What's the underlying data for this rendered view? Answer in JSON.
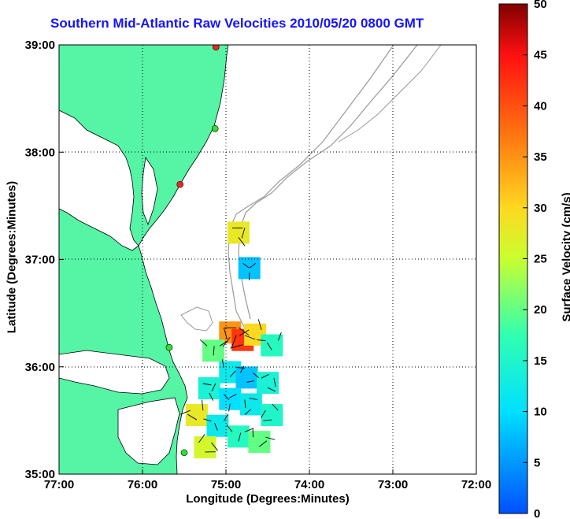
{
  "title": "Southern Mid-Atlantic Raw Velocities 2010/05/20 0800 GMT",
  "xlabel": "Longitude (Degrees:Minutes)",
  "ylabel": "Latitude (Degrees:Minutes)",
  "x_ticks": [
    "77:00",
    "76:00",
    "75:00",
    "74:00",
    "73:00",
    "72:00"
  ],
  "y_ticks": [
    "39:00",
    "38:00",
    "37:00",
    "36:00",
    "35:00"
  ],
  "colorbar": {
    "label": "Surface Velocity (cm/s)",
    "ticks": [
      "50",
      "45",
      "40",
      "35",
      "30",
      "25",
      "20",
      "15",
      "10",
      "5",
      "0"
    ],
    "min": 0,
    "max": 50
  },
  "colors": {
    "land": "#55f5a5",
    "coast": "#000000",
    "bathymetry": "#999999",
    "title": "#1414ff"
  },
  "stations": [
    {
      "name": "",
      "status": "red",
      "lon": -75.12,
      "lat": 38.98
    },
    {
      "name": "",
      "status": "green",
      "lon": -75.13,
      "lat": 38.22
    },
    {
      "name": "",
      "status": "red",
      "lon": -75.55,
      "lat": 37.7
    },
    {
      "name": "",
      "status": "green",
      "lon": -75.68,
      "lat": 36.18
    },
    {
      "name": "",
      "status": "green",
      "lon": -75.5,
      "lat": 35.2
    }
  ],
  "velocity_cells": [
    {
      "lon": -74.85,
      "lat": 37.25,
      "speed": 28
    },
    {
      "lon": -74.72,
      "lat": 36.92,
      "speed": 8
    },
    {
      "lon": -74.95,
      "lat": 36.32,
      "speed": 35
    },
    {
      "lon": -74.8,
      "lat": 36.25,
      "speed": 42
    },
    {
      "lon": -74.65,
      "lat": 36.3,
      "speed": 30
    },
    {
      "lon": -74.45,
      "lat": 36.2,
      "speed": 16
    },
    {
      "lon": -75.15,
      "lat": 36.15,
      "speed": 20
    },
    {
      "lon": -74.95,
      "lat": 35.95,
      "speed": 12
    },
    {
      "lon": -74.75,
      "lat": 35.9,
      "speed": 8
    },
    {
      "lon": -74.5,
      "lat": 35.85,
      "speed": 14
    },
    {
      "lon": -75.2,
      "lat": 35.8,
      "speed": 14
    },
    {
      "lon": -74.95,
      "lat": 35.7,
      "speed": 10
    },
    {
      "lon": -74.7,
      "lat": 35.65,
      "speed": 12
    },
    {
      "lon": -74.45,
      "lat": 35.55,
      "speed": 15
    },
    {
      "lon": -75.35,
      "lat": 35.55,
      "speed": 28
    },
    {
      "lon": -75.1,
      "lat": 35.45,
      "speed": 12
    },
    {
      "lon": -74.85,
      "lat": 35.35,
      "speed": 16
    },
    {
      "lon": -74.6,
      "lat": 35.3,
      "speed": 20
    },
    {
      "lon": -75.25,
      "lat": 35.25,
      "speed": 26
    }
  ]
}
